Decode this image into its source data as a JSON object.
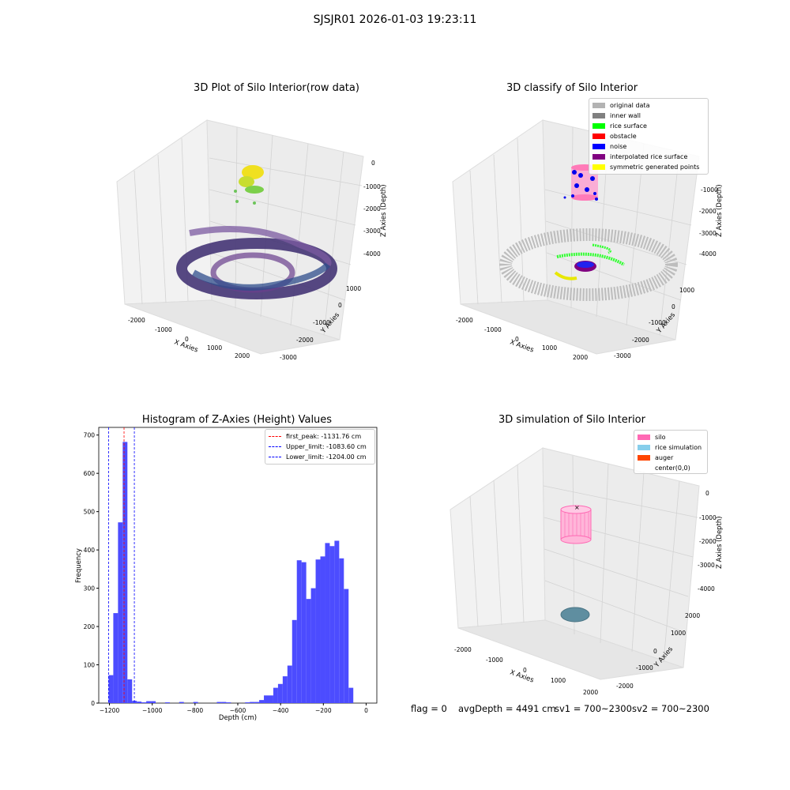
{
  "figure": {
    "suptitle": "SJSJR01 2026-01-03 19:23:11"
  },
  "panels": {
    "raw": {
      "title": "3D Plot of Silo Interior(row data)",
      "xlabel": "X Axies",
      "ylabel": "Y Axies",
      "zlabel": "Z Axies (Depth)",
      "xticks": [
        "-2000",
        "-1000",
        "0",
        "1000",
        "2000"
      ],
      "yticks": [
        "1000",
        "0",
        "-1000",
        "-2000",
        "-3000"
      ],
      "zticks": [
        "0",
        "-1000",
        "-2000",
        "-3000",
        "-4000"
      ]
    },
    "classify": {
      "title": "3D classify of Silo Interior",
      "xlabel": "X Axies",
      "ylabel": "Y Axies",
      "zlabel": "Z Axies (Depth)",
      "xticks": [
        "-2000",
        "-1000",
        "0",
        "1000",
        "2000"
      ],
      "yticks": [
        "1000",
        "0",
        "-1000",
        "-2000",
        "-3000"
      ],
      "zticks": [
        "0",
        "-1000",
        "-2000",
        "-3000",
        "-4000"
      ],
      "legend": [
        {
          "label": "original data",
          "color": "#b3b3b3"
        },
        {
          "label": "inner wall",
          "color": "#808080"
        },
        {
          "label": "rice surface",
          "color": "#00ff00"
        },
        {
          "label": "obstacle",
          "color": "#ff0000"
        },
        {
          "label": "noise",
          "color": "#0000ff"
        },
        {
          "label": "interpolated rice surface",
          "color": "#800080"
        },
        {
          "label": "symmetric generated points",
          "color": "#ffff00"
        }
      ]
    },
    "simulation": {
      "title": "3D simulation of Silo Interior",
      "xlabel": "X Axies",
      "ylabel": "Y Axies",
      "zlabel": "Z Axies (Depth)",
      "xticks": [
        "-2000",
        "-1000",
        "0",
        "1000",
        "2000"
      ],
      "yticks": [
        "2000",
        "1000",
        "0",
        "-1000",
        "-2000"
      ],
      "zticks": [
        "0",
        "-1000",
        "-2000",
        "-3000",
        "-4000"
      ],
      "legend": [
        {
          "label": "silo",
          "color": "#ff69b4"
        },
        {
          "label": "rice simulation",
          "color": "#87ceeb"
        },
        {
          "label": "auger",
          "color": "#ff4500"
        },
        {
          "label": "center(0,0)",
          "color": ""
        }
      ]
    }
  },
  "footer": {
    "flag": "flag = 0",
    "avg": "avgDepth = 4491 cm",
    "sv1": "sv1 = 700~2300",
    "sv2": "sv2 = 700~2300"
  },
  "colors": {
    "hist_bar": "#4c4cff",
    "first_peak_line": "#ff0000",
    "limit_line": "#0000ff"
  },
  "chart_data": {
    "type": "bar",
    "title": "Histogram of Z-Axies (Height) Values",
    "xlabel": "Depth (cm)",
    "ylabel": "Frequency",
    "xlim": [
      -1250,
      50
    ],
    "ylim": [
      0,
      720
    ],
    "xticks": [
      -1200,
      -1000,
      -800,
      -600,
      -400,
      -200,
      0
    ],
    "yticks": [
      0,
      100,
      200,
      300,
      400,
      500,
      600,
      700
    ],
    "bins": [
      [
        -1204,
        -1182,
        73
      ],
      [
        -1182,
        -1160,
        235
      ],
      [
        -1160,
        -1138,
        472
      ],
      [
        -1138,
        -1116,
        682
      ],
      [
        -1116,
        -1094,
        62
      ],
      [
        -1094,
        -1072,
        6
      ],
      [
        -1072,
        -1050,
        4
      ],
      [
        -1050,
        -1028,
        2
      ],
      [
        -1028,
        -1006,
        5
      ],
      [
        -1006,
        -984,
        5
      ],
      [
        -940,
        -918,
        2
      ],
      [
        -874,
        -852,
        3
      ],
      [
        -808,
        -786,
        3
      ],
      [
        -698,
        -676,
        3
      ],
      [
        -676,
        -654,
        3
      ],
      [
        -654,
        -632,
        2
      ],
      [
        -566,
        -544,
        2
      ],
      [
        -544,
        -522,
        3
      ],
      [
        -522,
        -500,
        3
      ],
      [
        -500,
        -478,
        8
      ],
      [
        -478,
        -456,
        20
      ],
      [
        -456,
        -434,
        20
      ],
      [
        -434,
        -412,
        40
      ],
      [
        -412,
        -390,
        50
      ],
      [
        -390,
        -368,
        70
      ],
      [
        -368,
        -346,
        98
      ],
      [
        -346,
        -324,
        217
      ],
      [
        -324,
        -302,
        373
      ],
      [
        -302,
        -280,
        368
      ],
      [
        -280,
        -258,
        272
      ],
      [
        -258,
        -236,
        300
      ],
      [
        -236,
        -214,
        375
      ],
      [
        -214,
        -192,
        383
      ],
      [
        -192,
        -170,
        418
      ],
      [
        -170,
        -148,
        410
      ],
      [
        -148,
        -126,
        424
      ],
      [
        -126,
        -104,
        378
      ],
      [
        -104,
        -82,
        298
      ],
      [
        -82,
        -60,
        40
      ]
    ],
    "vlines": [
      {
        "name": "first_peak: -1131.76 cm",
        "x": -1131.76,
        "color": "#ff0000"
      },
      {
        "name": "Upper_limit: -1083.60 cm",
        "x": -1083.6,
        "color": "#0000ff"
      },
      {
        "name": "Lower_limit: -1204.00 cm",
        "x": -1204.0,
        "color": "#0000ff"
      }
    ],
    "legend_position": "upper right"
  }
}
